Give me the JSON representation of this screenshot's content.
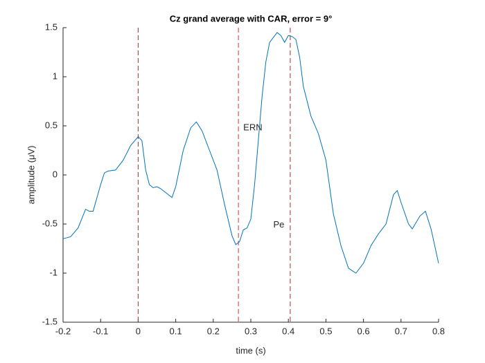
{
  "chart_data": {
    "type": "line",
    "title": "Cz grand average with CAR, error = 9°",
    "xlabel": "time (s)",
    "ylabel": "amplitude (μV)",
    "x": [
      -0.2,
      -0.18,
      -0.16,
      -0.14,
      -0.13,
      -0.12,
      -0.1,
      -0.09,
      -0.08,
      -0.06,
      -0.04,
      -0.02,
      0,
      0.01,
      0.02,
      0.03,
      0.04,
      0.05,
      0.06,
      0.08,
      0.09,
      0.1,
      0.12,
      0.14,
      0.155,
      0.17,
      0.19,
      0.21,
      0.23,
      0.25,
      0.26,
      0.27,
      0.28,
      0.29,
      0.3,
      0.31,
      0.32,
      0.33,
      0.34,
      0.35,
      0.37,
      0.38,
      0.39,
      0.4,
      0.41,
      0.42,
      0.43,
      0.44,
      0.46,
      0.48,
      0.5,
      0.52,
      0.54,
      0.56,
      0.58,
      0.6,
      0.62,
      0.64,
      0.66,
      0.68,
      0.69,
      0.7,
      0.72,
      0.73,
      0.75,
      0.765,
      0.78,
      0.8
    ],
    "series": [
      {
        "color": "#0072bd",
        "values": [
          -0.65,
          -0.63,
          -0.54,
          -0.35,
          -0.37,
          -0.37,
          -0.1,
          0.02,
          0.04,
          0.05,
          0.15,
          0.3,
          0.39,
          0.35,
          0.05,
          -0.1,
          -0.13,
          -0.12,
          -0.14,
          -0.2,
          -0.23,
          -0.12,
          0.25,
          0.48,
          0.54,
          0.45,
          0.25,
          0.05,
          -0.3,
          -0.62,
          -0.71,
          -0.68,
          -0.56,
          -0.54,
          -0.45,
          -0.1,
          0.35,
          0.8,
          1.15,
          1.35,
          1.45,
          1.42,
          1.35,
          1.42,
          1.41,
          1.38,
          1.2,
          0.9,
          0.6,
          0.42,
          0.15,
          -0.4,
          -0.72,
          -0.95,
          -1.0,
          -0.9,
          -0.72,
          -0.6,
          -0.5,
          -0.2,
          -0.16,
          -0.28,
          -0.5,
          -0.55,
          -0.42,
          -0.37,
          -0.55,
          -0.9
        ]
      }
    ],
    "xlim": [
      -0.2,
      0.8
    ],
    "ylim": [
      -1.5,
      1.5
    ],
    "xticks": [
      -0.2,
      -0.1,
      0,
      0.1,
      0.2,
      0.3,
      0.4,
      0.5,
      0.6,
      0.7,
      0.8
    ],
    "yticks": [
      -1.5,
      -1,
      -0.5,
      0,
      0.5,
      1,
      1.5
    ],
    "vlines": [
      {
        "x": 0,
        "color": "#a03030"
      },
      {
        "x": 0.267,
        "color": "#e03030"
      },
      {
        "x": 0.405,
        "color": "#a03030"
      }
    ],
    "annotations": [
      {
        "text": "ERN",
        "x": 0.28,
        "y": 0.48
      },
      {
        "text": "Pe",
        "x": 0.36,
        "y": -0.51
      }
    ]
  }
}
